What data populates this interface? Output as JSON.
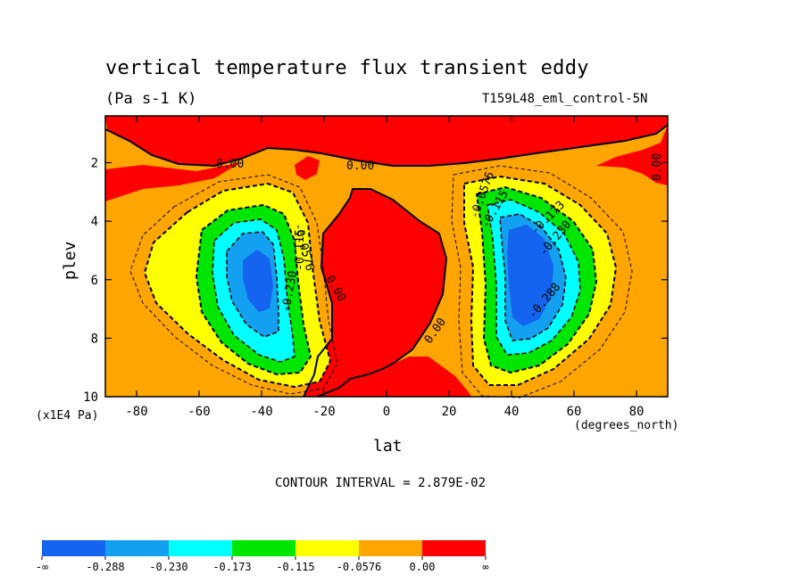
{
  "chart_data": {
    "type": "heatmap",
    "title": "vertical temperature flux transient eddy",
    "units": "(Pa s-1 K)",
    "run_label": "T159L48_eml_control-5N",
    "xlabel": "lat",
    "xunit": "(degrees_north)",
    "ylabel": "plev",
    "yunit": "(x1E4 Pa)",
    "contour_interval_text": "CONTOUR INTERVAL = 2.879E-02",
    "x_ticks": [
      "-80",
      "-60",
      "-40",
      "-20",
      "0",
      "20",
      "40",
      "60",
      "80"
    ],
    "x_tick_values": [
      -80,
      -60,
      -40,
      -20,
      0,
      20,
      40,
      60,
      80
    ],
    "y_ticks": [
      "2",
      "4",
      "6",
      "8",
      "10"
    ],
    "y_tick_values": [
      2,
      4,
      6,
      8,
      10
    ],
    "xlim": [
      -90,
      90
    ],
    "ylim": [
      0.4,
      10
    ],
    "y_inverted": true,
    "levels": [
      {
        "label": "-∞",
        "color": "#1464f0"
      },
      {
        "label": "-0.288",
        "color": "#14a0f0"
      },
      {
        "label": "-0.230",
        "color": "#00ffff"
      },
      {
        "label": "-0.173",
        "color": "#00e600"
      },
      {
        "label": "-0.115",
        "color": "#ffff00"
      },
      {
        "label": "-0.0576",
        "color": "#ffa500"
      },
      {
        "label": "0.00",
        "color": "#ff0000"
      },
      {
        "label": "∞",
        "color": null
      }
    ],
    "features": [
      {
        "name": "southern-hemisphere-minimum",
        "lat_center": -41,
        "plev_center": 5.8,
        "min_value_band": "< -0.288"
      },
      {
        "name": "northern-hemisphere-minimum",
        "lat_center": 46,
        "plev_center": 5.8,
        "min_value_band": "< -0.288"
      }
    ],
    "contour_labels": [
      "0.00",
      "0.00",
      "0.00",
      "0.00",
      "0.00",
      "0.00",
      "-0.0576",
      "-0.115",
      "-0.230",
      "-0.0576",
      "-0.115",
      "-0.173",
      "-0.230",
      "-0.288"
    ]
  }
}
